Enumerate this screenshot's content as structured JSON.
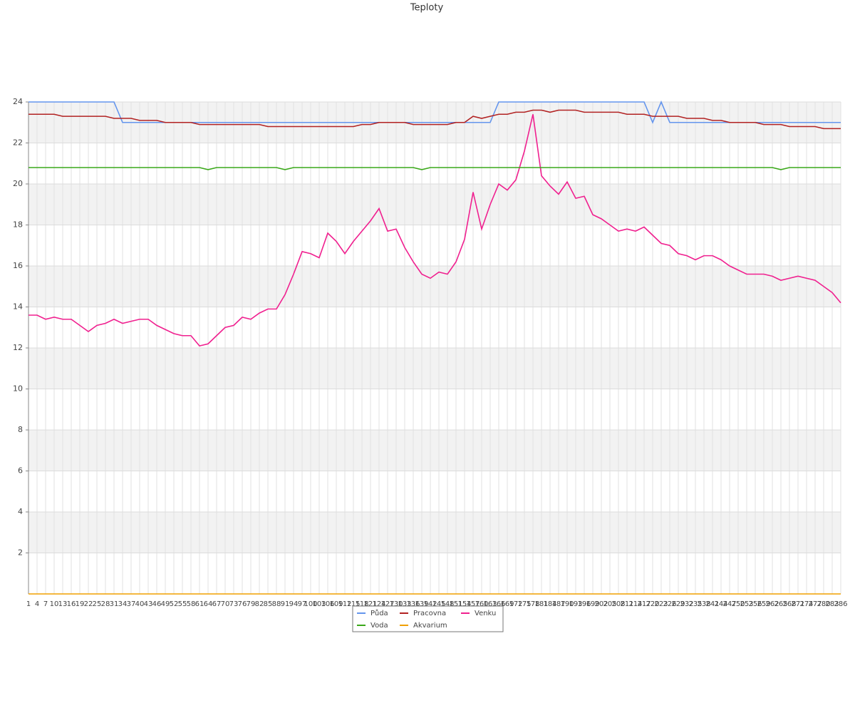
{
  "chart_data": {
    "type": "line",
    "title": "Teploty",
    "categories": [
      "1",
      "4",
      "7",
      "10",
      "13",
      "16",
      "19",
      "22",
      "25",
      "28",
      "31",
      "34",
      "37",
      "40",
      "43",
      "46",
      "49",
      "52",
      "55",
      "58",
      "61",
      "64",
      "67",
      "70",
      "73",
      "76",
      "79",
      "82",
      "85",
      "88",
      "91",
      "94",
      "97",
      "100",
      "103",
      "106",
      "109",
      "112",
      "115",
      "118",
      "121",
      "124",
      "127",
      "130",
      "133",
      "136",
      "139",
      "142",
      "145",
      "148",
      "151",
      "154",
      "157",
      "160",
      "163",
      "166",
      "169",
      "172",
      "175",
      "178",
      "181",
      "184",
      "187",
      "190",
      "193",
      "196",
      "199",
      "202",
      "205",
      "208",
      "211",
      "214",
      "217",
      "220",
      "223",
      "226",
      "229",
      "232",
      "235",
      "238",
      "241",
      "244",
      "247",
      "250",
      "253",
      "256",
      "259",
      "262",
      "265",
      "268",
      "271",
      "274",
      "277",
      "280",
      "283",
      "286"
    ],
    "series": [
      {
        "name": "Půda",
        "color": "#6495ed",
        "values": [
          24,
          24,
          24,
          24,
          24,
          24,
          24,
          24,
          24,
          24,
          24,
          23,
          23,
          23,
          23,
          23,
          23,
          23,
          23,
          23,
          23,
          23,
          23,
          23,
          23,
          23,
          23,
          23,
          23,
          23,
          23,
          23,
          23,
          23,
          23,
          23,
          23,
          23,
          23,
          23,
          23,
          23,
          23,
          23,
          23,
          23,
          23,
          23,
          23,
          23,
          23,
          23,
          23,
          23,
          23,
          24,
          24,
          24,
          24,
          24,
          24,
          24,
          24,
          24,
          24,
          24,
          24,
          24,
          24,
          24,
          24,
          24,
          24,
          23,
          24,
          23,
          23,
          23,
          23,
          23,
          23,
          23,
          23,
          23,
          23,
          23,
          23,
          23,
          23,
          23,
          23,
          23,
          23,
          23,
          23,
          23
        ]
      },
      {
        "name": "Pracovna",
        "color": "#b22222",
        "values": [
          23.4,
          23.4,
          23.4,
          23.4,
          23.3,
          23.3,
          23.3,
          23.3,
          23.3,
          23.3,
          23.2,
          23.2,
          23.2,
          23.1,
          23.1,
          23.1,
          23.0,
          23.0,
          23.0,
          23.0,
          22.9,
          22.9,
          22.9,
          22.9,
          22.9,
          22.9,
          22.9,
          22.9,
          22.8,
          22.8,
          22.8,
          22.8,
          22.8,
          22.8,
          22.8,
          22.8,
          22.8,
          22.8,
          22.8,
          22.9,
          22.9,
          23.0,
          23.0,
          23.0,
          23.0,
          22.9,
          22.9,
          22.9,
          22.9,
          22.9,
          23.0,
          23.0,
          23.3,
          23.2,
          23.3,
          23.4,
          23.4,
          23.5,
          23.5,
          23.6,
          23.6,
          23.5,
          23.6,
          23.6,
          23.6,
          23.5,
          23.5,
          23.5,
          23.5,
          23.5,
          23.4,
          23.4,
          23.4,
          23.3,
          23.3,
          23.3,
          23.3,
          23.2,
          23.2,
          23.2,
          23.1,
          23.1,
          23.0,
          23.0,
          23.0,
          23.0,
          22.9,
          22.9,
          22.9,
          22.8,
          22.8,
          22.8,
          22.8,
          22.7,
          22.7,
          22.7
        ]
      },
      {
        "name": "Venku",
        "color": "#f0208f",
        "values": [
          13.6,
          13.6,
          13.4,
          13.5,
          13.4,
          13.4,
          13.1,
          12.8,
          13.1,
          13.2,
          13.4,
          13.2,
          13.3,
          13.4,
          13.4,
          13.1,
          12.9,
          12.7,
          12.6,
          12.6,
          12.1,
          12.2,
          12.6,
          13.0,
          13.1,
          13.5,
          13.4,
          13.7,
          13.9,
          13.9,
          14.6,
          15.6,
          16.7,
          16.6,
          16.4,
          17.6,
          17.2,
          16.6,
          17.2,
          17.7,
          18.2,
          18.8,
          17.7,
          17.8,
          16.9,
          16.2,
          15.6,
          15.4,
          15.7,
          15.6,
          16.2,
          17.3,
          19.6,
          17.8,
          19.0,
          20.0,
          19.7,
          20.2,
          21.6,
          23.4,
          20.4,
          19.9,
          19.5,
          20.1,
          19.3,
          19.4,
          18.5,
          18.3,
          18.0,
          17.7,
          17.8,
          17.7,
          17.9,
          17.5,
          17.1,
          17.0,
          16.6,
          16.5,
          16.3,
          16.5,
          16.5,
          16.3,
          16.0,
          15.8,
          15.6,
          15.6,
          15.6,
          15.5,
          15.3,
          15.4,
          15.5,
          15.4,
          15.3,
          15.0,
          14.7,
          14.2
        ]
      },
      {
        "name": "Voda",
        "color": "#3aa81a",
        "values": [
          20.8,
          20.8,
          20.8,
          20.8,
          20.8,
          20.8,
          20.8,
          20.8,
          20.8,
          20.8,
          20.8,
          20.8,
          20.8,
          20.8,
          20.8,
          20.8,
          20.8,
          20.8,
          20.8,
          20.8,
          20.8,
          20.7,
          20.8,
          20.8,
          20.8,
          20.8,
          20.8,
          20.8,
          20.8,
          20.8,
          20.7,
          20.8,
          20.8,
          20.8,
          20.8,
          20.8,
          20.8,
          20.8,
          20.8,
          20.8,
          20.8,
          20.8,
          20.8,
          20.8,
          20.8,
          20.8,
          20.7,
          20.8,
          20.8,
          20.8,
          20.8,
          20.8,
          20.8,
          20.8,
          20.8,
          20.8,
          20.8,
          20.8,
          20.8,
          20.8,
          20.8,
          20.8,
          20.8,
          20.8,
          20.8,
          20.8,
          20.8,
          20.8,
          20.8,
          20.8,
          20.8,
          20.8,
          20.8,
          20.8,
          20.8,
          20.8,
          20.8,
          20.8,
          20.8,
          20.8,
          20.8,
          20.8,
          20.8,
          20.8,
          20.8,
          20.8,
          20.8,
          20.8,
          20.7,
          20.8,
          20.8,
          20.8,
          20.8,
          20.8,
          20.8,
          20.8
        ]
      },
      {
        "name": "Akvarium",
        "color": "#f0a000",
        "values": [
          0,
          0,
          0,
          0,
          0,
          0,
          0,
          0,
          0,
          0,
          0,
          0,
          0,
          0,
          0,
          0,
          0,
          0,
          0,
          0,
          0,
          0,
          0,
          0,
          0,
          0,
          0,
          0,
          0,
          0,
          0,
          0,
          0,
          0,
          0,
          0,
          0,
          0,
          0,
          0,
          0,
          0,
          0,
          0,
          0,
          0,
          0,
          0,
          0,
          0,
          0,
          0,
          0,
          0,
          0,
          0,
          0,
          0,
          0,
          0,
          0,
          0,
          0,
          0,
          0,
          0,
          0,
          0,
          0,
          0,
          0,
          0,
          0,
          0,
          0,
          0,
          0,
          0,
          0,
          0,
          0,
          0,
          0,
          0,
          0,
          0,
          0,
          0,
          0,
          0,
          0,
          0,
          0,
          0,
          0,
          0
        ]
      }
    ],
    "ylim": [
      0,
      24
    ],
    "yticks": [
      2,
      4,
      6,
      8,
      10,
      12,
      14,
      16,
      18,
      20,
      22,
      24
    ],
    "grid": true
  }
}
